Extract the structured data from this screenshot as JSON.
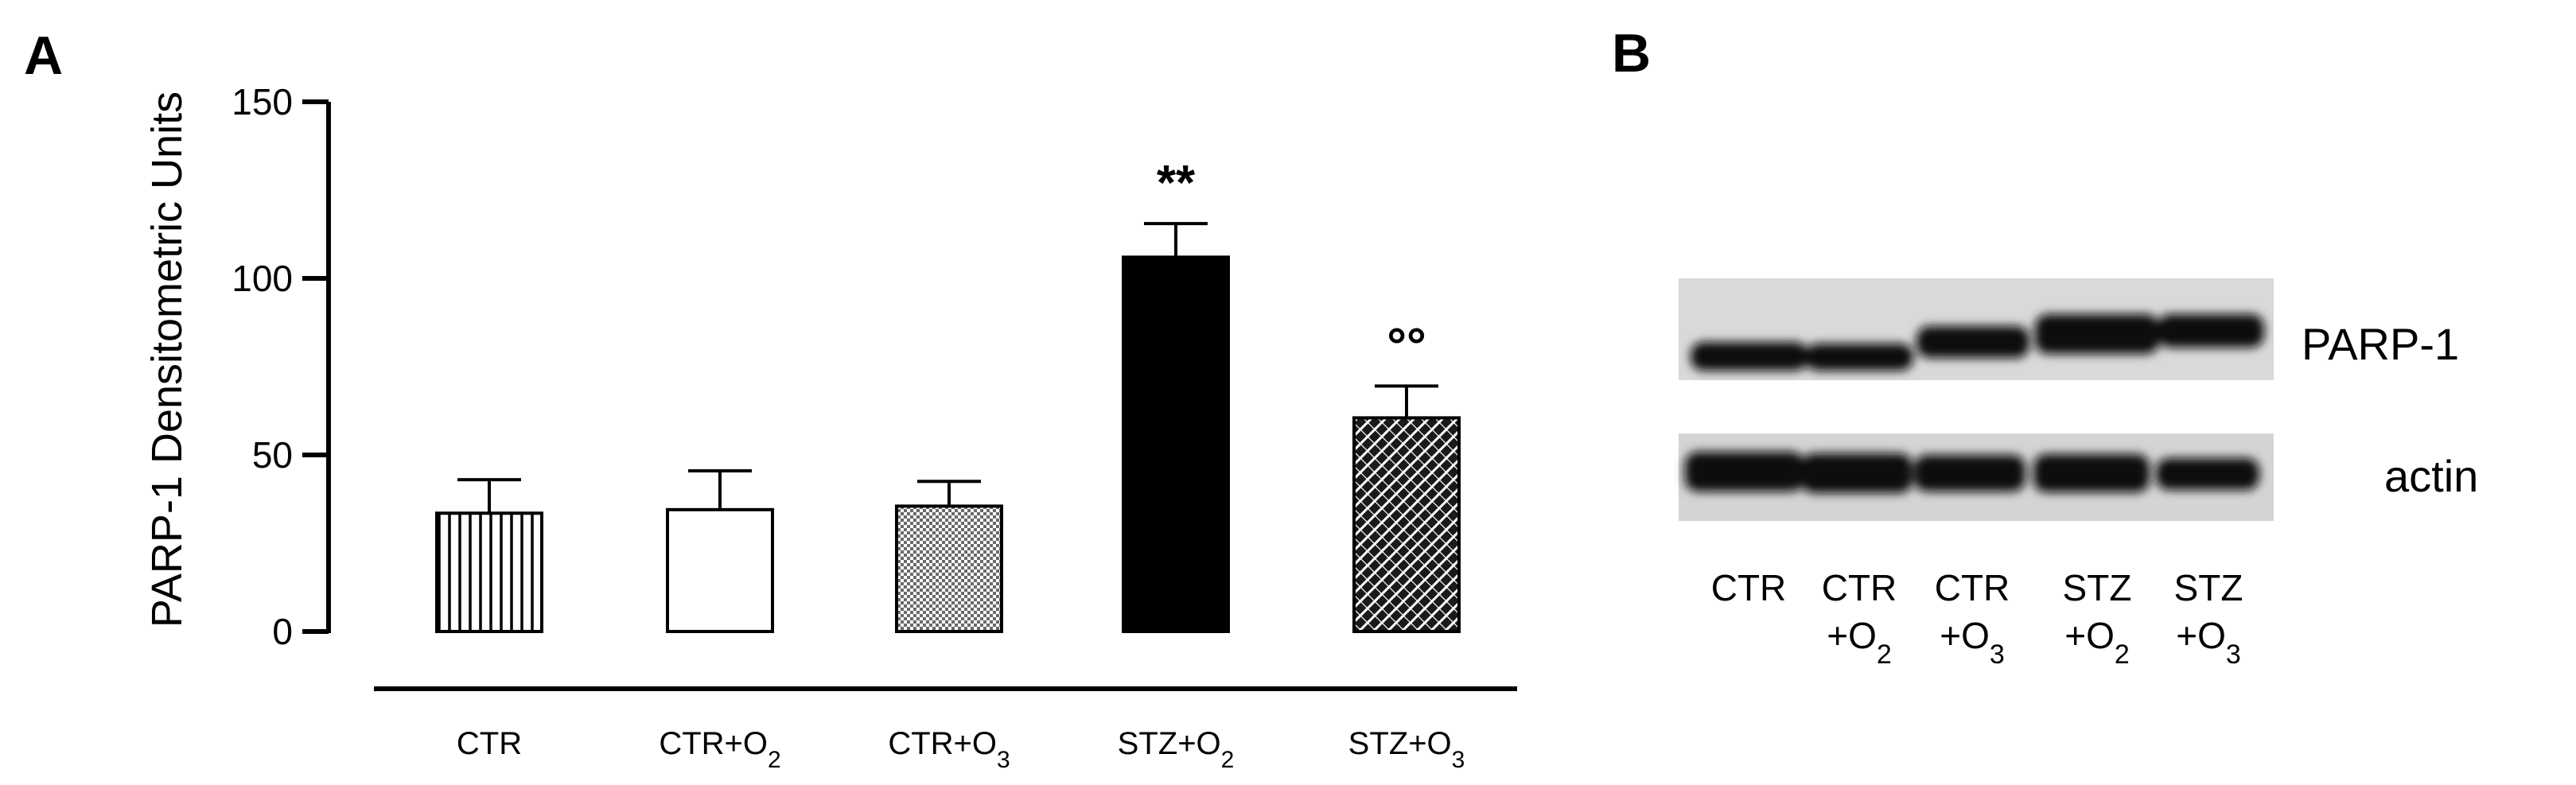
{
  "panel_a": {
    "letter": "A"
  },
  "panel_b": {
    "letter": "B",
    "band_labels": [
      "PARP-1",
      "actin"
    ],
    "lanes": [
      {
        "line1": "CTR",
        "line2": "",
        "sub": ""
      },
      {
        "line1": "CTR",
        "line2": "+O",
        "sub": "2"
      },
      {
        "line1": "CTR",
        "line2": "+O",
        "sub": "3"
      },
      {
        "line1": "STZ",
        "line2": "+O",
        "sub": "2"
      },
      {
        "line1": "STZ",
        "line2": "+O",
        "sub": "3"
      }
    ]
  },
  "chart_data": {
    "type": "bar",
    "title": "",
    "xlabel": "",
    "ylabel": "PARP-1 Densitometric Units",
    "ylim": [
      0,
      150
    ],
    "yticks": [
      0,
      50,
      100,
      150
    ],
    "categories": [
      {
        "base": "CTR",
        "sub": ""
      },
      {
        "base": "CTR+O",
        "sub": "2"
      },
      {
        "base": "CTR+O",
        "sub": "3"
      },
      {
        "base": "STZ+O",
        "sub": "2"
      },
      {
        "base": "STZ+O",
        "sub": "3"
      }
    ],
    "values": [
      33.5,
      34.5,
      35.5,
      106,
      60.5
    ],
    "errors": [
      9.5,
      11,
      7,
      9.5,
      9
    ],
    "fills": [
      "vertical-stripes",
      "white",
      "stipple",
      "black",
      "crosshatch"
    ],
    "annotations": [
      "",
      "",
      "",
      "**",
      "°°"
    ]
  }
}
